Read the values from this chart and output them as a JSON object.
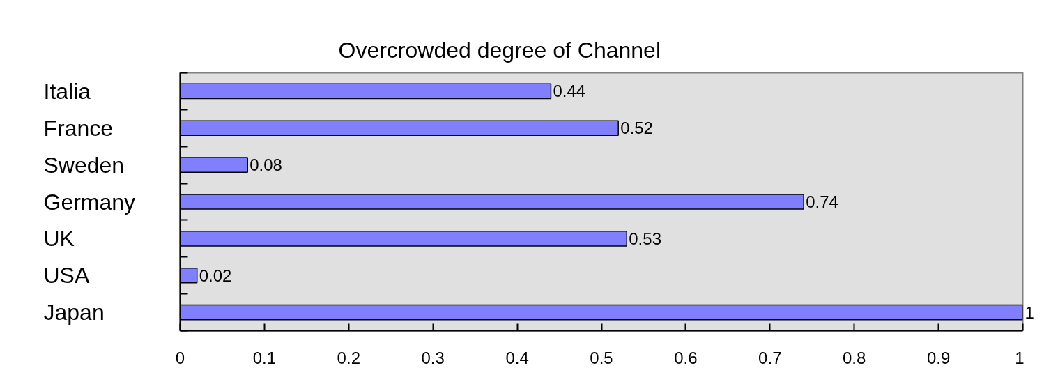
{
  "chart_data": {
    "type": "bar",
    "orientation": "horizontal",
    "title": "Overcrowded degree of Channel",
    "categories": [
      "Italia",
      "France",
      "Sweden",
      "Germany",
      "UK",
      "USA",
      "Japan"
    ],
    "values": [
      0.44,
      0.52,
      0.08,
      0.74,
      0.53,
      0.02,
      1
    ],
    "color": "#8080ff",
    "xlim": [
      0,
      1
    ],
    "xticks": [
      0,
      0.1,
      0.2,
      0.3,
      0.4,
      0.5,
      0.6,
      0.7,
      0.8,
      0.9,
      1
    ],
    "data_labels": true
  }
}
